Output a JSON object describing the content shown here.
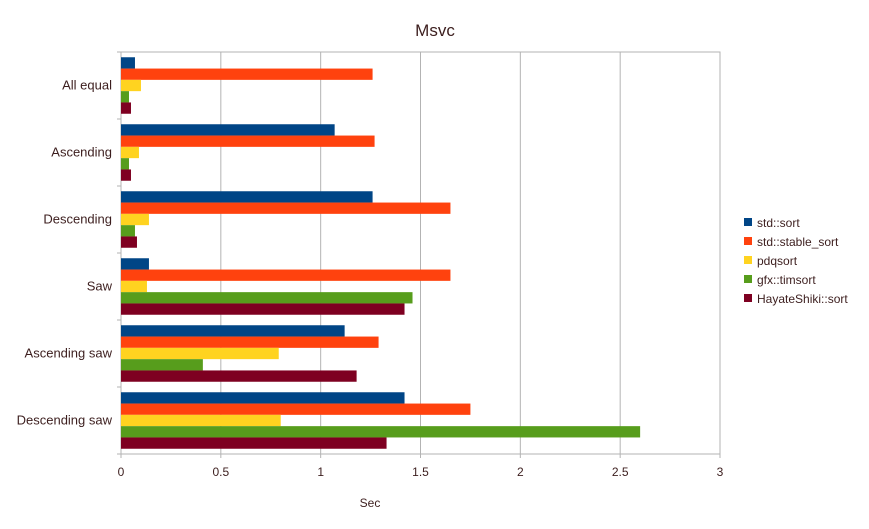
{
  "chart_data": {
    "type": "bar",
    "orientation": "horizontal",
    "title": "Msvc",
    "xlabel": "Sec",
    "ylabel": "",
    "xlim": [
      0,
      3
    ],
    "xticks": [
      0,
      0.5,
      1,
      1.5,
      2,
      2.5,
      3
    ],
    "xtick_labels": [
      "0",
      "0.5",
      "1",
      "1.5",
      "2",
      "2.5",
      "3"
    ],
    "grid": "vertical",
    "legend_position": "right",
    "categories": [
      "All equal",
      "Ascending",
      "Descending",
      "Saw",
      "Ascending saw",
      "Descending saw"
    ],
    "series": [
      {
        "name": "std::sort",
        "color": "#004586",
        "values": [
          0.07,
          1.07,
          1.26,
          0.14,
          1.12,
          1.42
        ]
      },
      {
        "name": "std::stable_sort",
        "color": "#ff420e",
        "values": [
          1.26,
          1.27,
          1.65,
          1.65,
          1.29,
          1.75
        ]
      },
      {
        "name": "pdqsort",
        "color": "#ffd320",
        "values": [
          0.1,
          0.09,
          0.14,
          0.13,
          0.79,
          0.8
        ]
      },
      {
        "name": "gfx::timsort",
        "color": "#579d1c",
        "values": [
          0.04,
          0.04,
          0.07,
          1.46,
          0.41,
          2.6
        ]
      },
      {
        "name": "HayateShiki::sort",
        "color": "#7e0021",
        "values": [
          0.05,
          0.05,
          0.08,
          1.42,
          1.18,
          1.33
        ]
      }
    ]
  }
}
